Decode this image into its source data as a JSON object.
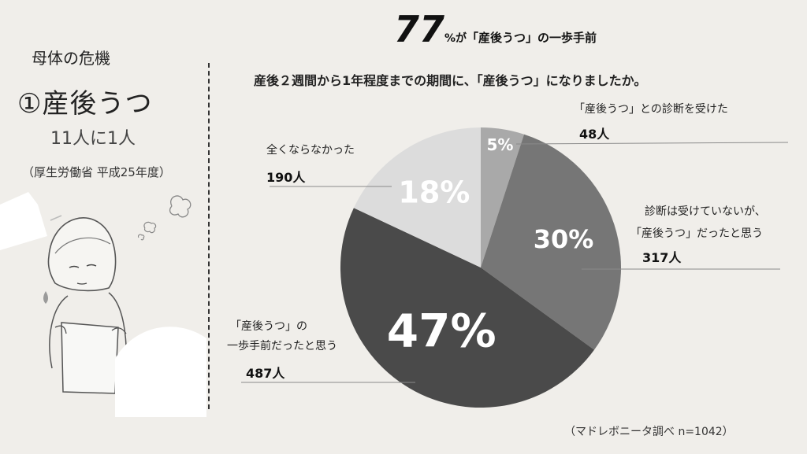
{
  "left_panel": {
    "title": "母体の危機",
    "heading": "①産後うつ",
    "ratio": "11人に1人",
    "source": "（厚生労働省 平成25年度）"
  },
  "headline": {
    "big": "77",
    "pct": "%が",
    "rest": "「産後うつ」の一歩手前"
  },
  "question": "産後２週間から1年程度までの期間に、「産後うつ」になりましたか。",
  "footnote": "（マドレボニータ調べ n=1042）",
  "colors": {
    "background": "#f0eeea",
    "slice_diagnosed": "#a9a9a9",
    "slice_undiagnosed": "#767676",
    "slice_near": "#4a4a4a",
    "slice_none": "#dcdcdc"
  },
  "chart_data": {
    "type": "pie",
    "title": "産後２週間から1年程度までの期間に、「産後うつ」になりましたか。",
    "total": 1042,
    "slices": [
      {
        "label": "「産後うつ」との診断を受けた",
        "count_text": "48人",
        "count": 48,
        "percent_text": "5%",
        "value": 5
      },
      {
        "label_lines": [
          "診断は受けていないが、",
          "「産後うつ」だったと思う"
        ],
        "count_text": "317人",
        "count": 317,
        "percent_text": "30%",
        "value": 30
      },
      {
        "label_lines": [
          "「産後うつ」の",
          "一歩手前だったと思う"
        ],
        "count_text": "487人",
        "count": 487,
        "percent_text": "47%",
        "value": 47
      },
      {
        "label": "全くならなかった",
        "count_text": "190人",
        "count": 190,
        "percent_text": "18%",
        "value": 18
      }
    ]
  }
}
